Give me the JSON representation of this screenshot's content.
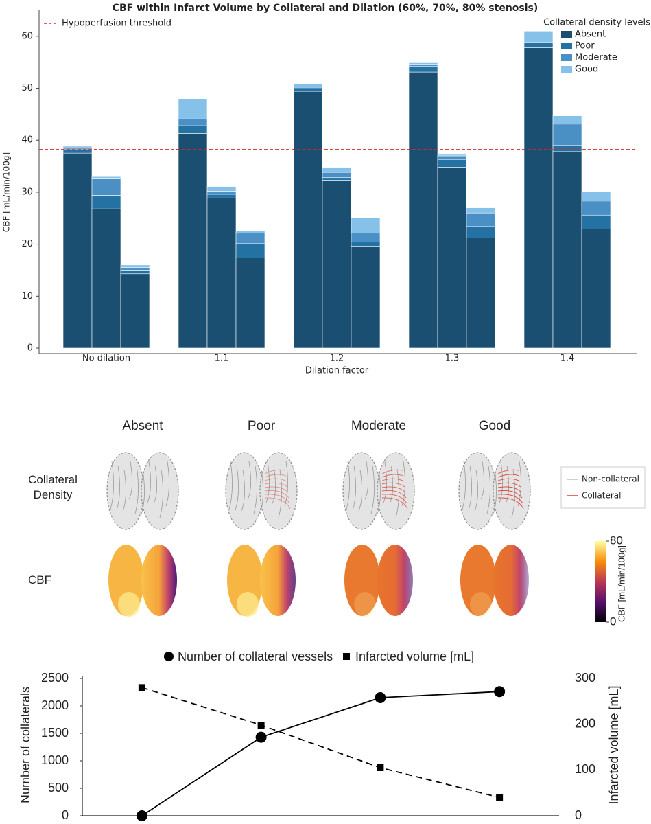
{
  "chart_data": [
    {
      "type": "stacked-grouped-bar",
      "title": "CBF within Infarct Volume by Collateral and Dilation (60%, 70%, 80% stenosis)",
      "xlabel": "Dilation factor",
      "ylabel": "CBF [mL/min/100g]",
      "categories": [
        "No dilation",
        "1.1",
        "1.2",
        "1.3",
        "1.4"
      ],
      "legend_title": "Collateral density levels",
      "series": [
        {
          "name": "Absent",
          "color": "#1b4f72",
          "values": [
            [
              37.5,
              26.8,
              14.3
            ],
            [
              41.3,
              28.9,
              17.4
            ],
            [
              49.4,
              32.3,
              19.6
            ],
            [
              53.1,
              34.8,
              21.2
            ],
            [
              57.8,
              37.8,
              22.9
            ]
          ]
        },
        {
          "name": "Poor",
          "color": "#2471a3",
          "values": [
            [
              0.8,
              2.6,
              0.7
            ],
            [
              1.5,
              0.7,
              2.7
            ],
            [
              0.5,
              0.5,
              0.8
            ],
            [
              1.1,
              1.5,
              2.2
            ],
            [
              0.9,
              1.2,
              2.7
            ]
          ]
        },
        {
          "name": "Moderate",
          "color": "#4a90c4",
          "values": [
            [
              0.4,
              3.3,
              0.5
            ],
            [
              1.3,
              0.6,
              2.0
            ],
            [
              0.3,
              1.0,
              1.7
            ],
            [
              0.4,
              0.7,
              2.6
            ],
            [
              0.1,
              4.1,
              2.7
            ]
          ]
        },
        {
          "name": " Good",
          "color": "#85c1e9",
          "values": [
            [
              0.3,
              0.3,
              0.5
            ],
            [
              3.9,
              0.9,
              0.4
            ],
            [
              0.7,
              1.0,
              3.0
            ],
            [
              0.3,
              0.4,
              1.0
            ],
            [
              2.2,
              1.6,
              1.8
            ]
          ]
        }
      ],
      "threshold": {
        "label": "Hypoperfusion threshold",
        "value": 38.2,
        "color": "#d62728"
      },
      "ylim": [
        0,
        65
      ],
      "yticks": [
        0,
        10,
        20,
        30,
        40,
        50,
        60
      ]
    },
    {
      "type": "image-grid",
      "columns": [
        "Absent",
        "Poor",
        "Moderate",
        "Good"
      ],
      "rows": [
        "Collateral Density",
        "CBF"
      ],
      "legend": [
        {
          "name": "Non-collateral",
          "color": "#bdbdbd"
        },
        {
          "name": "Collateral",
          "color": "#e03c31"
        }
      ],
      "colorbar": {
        "label": "CBF [mL/min/100g]",
        "lim": [
          0,
          80
        ],
        "ticks": [
          0,
          80
        ],
        "colormap": "inferno"
      }
    },
    {
      "type": "line",
      "categories": [
        null,
        null,
        null,
        null
      ],
      "ylabel": "Number of collaterals",
      "y2label": "Infarcted volume [mL]",
      "series": [
        {
          "name": "Number of collateral vessels",
          "color": "#000000",
          "marker": "circle",
          "dashed": false,
          "values": [
            0,
            1430,
            2150,
            2260
          ]
        },
        {
          "name": "Infarcted volume [mL]",
          "color": "#000000",
          "marker": "square",
          "dashed": true,
          "axis": "y2",
          "values": [
            280,
            198,
            105,
            40
          ]
        }
      ],
      "ylim": [
        0,
        2500
      ],
      "yticks": [
        0,
        500,
        1000,
        1500,
        2000,
        2500
      ],
      "y2lim": [
        0,
        300
      ],
      "y2ticks": [
        0,
        100,
        200,
        300
      ]
    }
  ]
}
